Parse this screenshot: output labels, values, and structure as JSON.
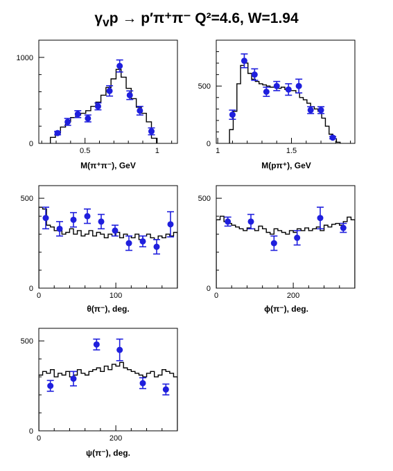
{
  "figure": {
    "title": "γ<sub>v</sub>p → p′π⁺π⁻   Q²=4.6, W=1.94"
  },
  "colors": {
    "data_points": "#1f1fdd",
    "histogram": "#000000",
    "axes": "#000000"
  },
  "chart_data": [
    {
      "id": "m_pipi",
      "type": "scatter",
      "xlabel": "M(π⁺π⁻), GeV",
      "xlim": [
        0.18,
        1.14
      ],
      "ylim": [
        0,
        1200
      ],
      "xticks": [
        {
          "v": 0.5,
          "label": "0.5"
        },
        {
          "v": 1.0,
          "label": "1"
        }
      ],
      "yticks": [
        {
          "v": 0,
          "label": "0"
        },
        {
          "v": 1000,
          "label": "1000"
        }
      ],
      "points": [
        {
          "x": 0.31,
          "y": 120,
          "err": 20
        },
        {
          "x": 0.38,
          "y": 250,
          "err": 40
        },
        {
          "x": 0.45,
          "y": 340,
          "err": 40
        },
        {
          "x": 0.52,
          "y": 290,
          "err": 40
        },
        {
          "x": 0.59,
          "y": 430,
          "err": 40
        },
        {
          "x": 0.67,
          "y": 610,
          "err": 60
        },
        {
          "x": 0.74,
          "y": 900,
          "err": 70
        },
        {
          "x": 0.81,
          "y": 560,
          "err": 50
        },
        {
          "x": 0.88,
          "y": 380,
          "err": 50
        },
        {
          "x": 0.96,
          "y": 140,
          "err": 40
        }
      ],
      "histogram": {
        "edges": [
          0.26,
          0.295,
          0.33,
          0.365,
          0.4,
          0.435,
          0.47,
          0.505,
          0.54,
          0.575,
          0.61,
          0.645,
          0.68,
          0.715,
          0.75,
          0.785,
          0.82,
          0.855,
          0.89,
          0.925,
          0.96,
          0.995
        ],
        "values": [
          70,
          120,
          190,
          250,
          300,
          330,
          350,
          380,
          430,
          480,
          560,
          650,
          750,
          860,
          770,
          640,
          520,
          420,
          350,
          250,
          60
        ]
      }
    },
    {
      "id": "m_ppip",
      "type": "scatter",
      "xlabel": "M(pπ⁺), GeV",
      "xlim": [
        0.99,
        1.93
      ],
      "ylim": [
        0,
        900
      ],
      "xticks": [
        {
          "v": 1.0,
          "label": "1"
        },
        {
          "v": 1.5,
          "label": "1.5"
        }
      ],
      "yticks": [
        {
          "v": 0,
          "label": "0"
        },
        {
          "v": 500,
          "label": "500"
        }
      ],
      "points": [
        {
          "x": 1.1,
          "y": 250,
          "err": 40
        },
        {
          "x": 1.18,
          "y": 720,
          "err": 60
        },
        {
          "x": 1.25,
          "y": 600,
          "err": 50
        },
        {
          "x": 1.33,
          "y": 450,
          "err": 40
        },
        {
          "x": 1.4,
          "y": 500,
          "err": 40
        },
        {
          "x": 1.48,
          "y": 470,
          "err": 50
        },
        {
          "x": 1.55,
          "y": 500,
          "err": 60
        },
        {
          "x": 1.63,
          "y": 290,
          "err": 30
        },
        {
          "x": 1.7,
          "y": 290,
          "err": 30
        },
        {
          "x": 1.78,
          "y": 50,
          "err": 10
        }
      ],
      "histogram": {
        "edges": [
          1.08,
          1.105,
          1.13,
          1.155,
          1.18,
          1.205,
          1.23,
          1.255,
          1.28,
          1.305,
          1.33,
          1.355,
          1.38,
          1.405,
          1.43,
          1.455,
          1.48,
          1.505,
          1.53,
          1.555,
          1.58,
          1.605,
          1.63,
          1.655,
          1.68,
          1.705,
          1.73,
          1.755,
          1.78,
          1.805,
          1.83
        ],
        "values": [
          120,
          280,
          520,
          680,
          700,
          610,
          560,
          540,
          520,
          510,
          500,
          490,
          490,
          480,
          490,
          470,
          460,
          460,
          440,
          400,
          380,
          350,
          320,
          300,
          280,
          220,
          150,
          80,
          40,
          10
        ]
      }
    },
    {
      "id": "theta",
      "type": "scatter",
      "xlabel": "θ(π⁻), deg.",
      "xlim": [
        0,
        180
      ],
      "ylim": [
        0,
        570
      ],
      "xticks": [
        {
          "v": 0,
          "label": "0"
        },
        {
          "v": 100,
          "label": "100"
        }
      ],
      "yticks": [
        {
          "v": 0,
          "label": "0"
        },
        {
          "v": 500,
          "label": "500"
        }
      ],
      "points": [
        {
          "x": 9,
          "y": 390,
          "err": 60
        },
        {
          "x": 27,
          "y": 330,
          "err": 40
        },
        {
          "x": 45,
          "y": 380,
          "err": 40
        },
        {
          "x": 63,
          "y": 400,
          "err": 40
        },
        {
          "x": 81,
          "y": 370,
          "err": 40
        },
        {
          "x": 99,
          "y": 320,
          "err": 30
        },
        {
          "x": 117,
          "y": 250,
          "err": 40
        },
        {
          "x": 135,
          "y": 260,
          "err": 30
        },
        {
          "x": 153,
          "y": 230,
          "err": 40
        },
        {
          "x": 171,
          "y": 355,
          "err": 70
        }
      ],
      "histogram": {
        "edges": [
          0,
          5,
          10,
          15,
          20,
          25,
          30,
          35,
          40,
          45,
          50,
          55,
          60,
          65,
          70,
          75,
          80,
          85,
          90,
          95,
          100,
          105,
          110,
          115,
          120,
          125,
          130,
          135,
          140,
          145,
          150,
          155,
          160,
          165,
          170,
          175,
          180
        ],
        "values": [
          450,
          440,
          350,
          340,
          320,
          330,
          300,
          310,
          330,
          300,
          320,
          290,
          300,
          320,
          290,
          310,
          300,
          280,
          300,
          290,
          310,
          280,
          300,
          290,
          280,
          300,
          270,
          290,
          300,
          280,
          270,
          290,
          280,
          300,
          290,
          310
        ]
      }
    },
    {
      "id": "phi",
      "type": "scatter",
      "xlabel": "ϕ(π⁻), deg.",
      "xlim": [
        0,
        360
      ],
      "ylim": [
        0,
        570
      ],
      "xticks": [
        {
          "v": 0,
          "label": "0"
        },
        {
          "v": 200,
          "label": "200"
        }
      ],
      "yticks": [
        {
          "v": 0,
          "label": "0"
        },
        {
          "v": 500,
          "label": "500"
        }
      ],
      "points": [
        {
          "x": 30,
          "y": 370,
          "err": 25
        },
        {
          "x": 90,
          "y": 370,
          "err": 40
        },
        {
          "x": 150,
          "y": 250,
          "err": 40
        },
        {
          "x": 210,
          "y": 280,
          "err": 40
        },
        {
          "x": 270,
          "y": 390,
          "err": 60
        },
        {
          "x": 330,
          "y": 335,
          "err": 25
        }
      ],
      "histogram": {
        "edges": [
          0,
          10,
          20,
          30,
          40,
          50,
          60,
          70,
          80,
          90,
          100,
          110,
          120,
          130,
          140,
          150,
          160,
          170,
          180,
          190,
          200,
          210,
          220,
          230,
          240,
          250,
          260,
          270,
          280,
          290,
          300,
          310,
          320,
          330,
          340,
          350,
          360
        ],
        "values": [
          380,
          400,
          370,
          360,
          350,
          340,
          330,
          320,
          335,
          330,
          320,
          345,
          330,
          310,
          300,
          330,
          320,
          310,
          300,
          320,
          310,
          330,
          320,
          335,
          320,
          330,
          340,
          320,
          350,
          340,
          355,
          360,
          350,
          370,
          395,
          380
        ]
      }
    },
    {
      "id": "psi",
      "type": "scatter",
      "xlabel": "ψ(π⁻), deg.",
      "xlim": [
        0,
        360
      ],
      "ylim": [
        0,
        570
      ],
      "xticks": [
        {
          "v": 0,
          "label": "0"
        },
        {
          "v": 200,
          "label": "200"
        }
      ],
      "yticks": [
        {
          "v": 0,
          "label": "0"
        },
        {
          "v": 500,
          "label": "500"
        }
      ],
      "points": [
        {
          "x": 30,
          "y": 250,
          "err": 30
        },
        {
          "x": 90,
          "y": 290,
          "err": 40
        },
        {
          "x": 150,
          "y": 480,
          "err": 30
        },
        {
          "x": 210,
          "y": 450,
          "err": 60
        },
        {
          "x": 270,
          "y": 265,
          "err": 30
        },
        {
          "x": 330,
          "y": 230,
          "err": 30
        }
      ],
      "histogram": {
        "edges": [
          0,
          10,
          20,
          30,
          40,
          50,
          60,
          70,
          80,
          90,
          100,
          110,
          120,
          130,
          140,
          150,
          160,
          170,
          180,
          190,
          200,
          210,
          220,
          230,
          240,
          250,
          260,
          270,
          280,
          290,
          300,
          310,
          320,
          330,
          340,
          350,
          360
        ],
        "values": [
          310,
          330,
          320,
          340,
          300,
          320,
          310,
          330,
          300,
          310,
          340,
          320,
          310,
          330,
          340,
          350,
          330,
          360,
          340,
          370,
          360,
          380,
          350,
          340,
          330,
          320,
          310,
          300,
          320,
          330,
          300,
          310,
          340,
          330,
          320,
          300
        ]
      }
    }
  ]
}
